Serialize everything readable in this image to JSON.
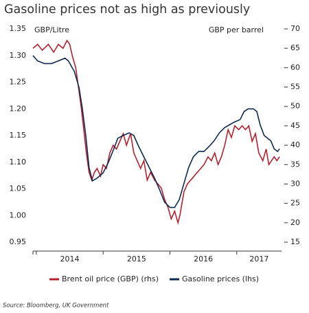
{
  "chart_data": {
    "type": "line",
    "title": "Gasoline prices not as high as previously",
    "ylabel": "GBP/Litre",
    "y2label": "GBP per barrel",
    "source": "Source: Bloomberg, UK Government",
    "xlim": [
      2013.95,
      2017.67
    ],
    "xticks": [
      2014,
      2015,
      2016,
      2017
    ],
    "ylim": [
      0.95,
      1.35
    ],
    "yticks": [
      {
        "value": 0.95,
        "label": "0.95"
      },
      {
        "value": 1.0,
        "label": "1.00"
      },
      {
        "value": 1.05,
        "label": "1.05"
      },
      {
        "value": 1.1,
        "label": "1.10"
      },
      {
        "value": 1.15,
        "label": "1.15"
      },
      {
        "value": 1.2,
        "label": "1.20"
      },
      {
        "value": 1.25,
        "label": "1.25"
      },
      {
        "value": 1.3,
        "label": "1.30"
      },
      {
        "value": 1.35,
        "label": "1.35"
      }
    ],
    "y2lim": [
      15,
      70
    ],
    "y2ticks": [
      15,
      20,
      25,
      30,
      35,
      40,
      45,
      50,
      55,
      60,
      65,
      70
    ],
    "legend": "bottom",
    "series": [
      {
        "name": "Brent oil price (GBP) (rhs)",
        "color": "#b5202e",
        "axis": "y2",
        "x": [
          2013.95,
          2014.02,
          2014.09,
          2014.18,
          2014.26,
          2014.33,
          2014.4,
          2014.46,
          2014.5,
          2014.54,
          2014.59,
          2014.63,
          2014.67,
          2014.71,
          2014.75,
          2014.79,
          2014.83,
          2014.87,
          2014.91,
          2014.96,
          2015.0,
          2015.05,
          2015.1,
          2015.15,
          2015.2,
          2015.25,
          2015.3,
          2015.35,
          2015.41,
          2015.46,
          2015.51,
          2015.56,
          2015.61,
          2015.66,
          2015.71,
          2015.77,
          2015.82,
          2015.87,
          2015.92,
          2015.97,
          2016.02,
          2016.07,
          2016.12,
          2016.15,
          2016.21,
          2016.26,
          2016.31,
          2016.36,
          2016.41,
          2016.46,
          2016.51,
          2016.57,
          2016.62,
          2016.67,
          2016.72,
          2016.77,
          2016.82,
          2016.87,
          2016.92,
          2016.97,
          2017.03,
          2017.08,
          2017.13,
          2017.18,
          2017.23,
          2017.28,
          2017.33,
          2017.39,
          2017.44,
          2017.48,
          2017.52,
          2017.56,
          2017.6,
          2017.64
        ],
        "values": [
          65,
          66,
          64.5,
          66,
          64,
          66,
          65,
          67,
          66,
          63,
          60,
          55,
          50,
          44,
          38,
          33,
          31,
          33,
          34,
          32,
          35,
          34,
          38,
          40,
          39,
          41,
          43,
          40,
          43,
          38,
          36,
          34,
          36,
          31,
          33,
          31,
          30,
          29,
          26,
          24,
          21,
          23,
          20,
          22,
          28,
          30,
          31,
          32,
          33,
          34,
          35,
          37,
          36,
          38,
          35,
          37,
          40,
          44,
          42,
          45,
          44,
          45,
          44,
          45,
          41,
          43,
          38,
          36,
          39,
          35,
          36,
          37,
          36,
          37
        ]
      },
      {
        "name": "Gasoline prices (lhs)",
        "color": "#0e2a4f",
        "axis": "y",
        "x": [
          2013.95,
          2014.02,
          2014.12,
          2014.23,
          2014.33,
          2014.43,
          2014.48,
          2014.57,
          2014.64,
          2014.69,
          2014.74,
          2014.79,
          2014.84,
          2014.91,
          2015.0,
          2015.08,
          2015.16,
          2015.22,
          2015.3,
          2015.39,
          2015.46,
          2015.53,
          2015.61,
          2015.69,
          2015.77,
          2015.84,
          2015.92,
          2016.0,
          2016.07,
          2016.14,
          2016.21,
          2016.28,
          2016.35,
          2016.43,
          2016.51,
          2016.59,
          2016.66,
          2016.74,
          2016.82,
          2016.89,
          2016.96,
          2017.05,
          2017.11,
          2017.17,
          2017.25,
          2017.3,
          2017.35,
          2017.41,
          2017.46,
          2017.51,
          2017.56,
          2017.61,
          2017.64
        ],
        "values": [
          1.3,
          1.29,
          1.285,
          1.285,
          1.29,
          1.295,
          1.29,
          1.27,
          1.24,
          1.2,
          1.15,
          1.09,
          1.065,
          1.07,
          1.08,
          1.1,
          1.125,
          1.145,
          1.15,
          1.155,
          1.15,
          1.13,
          1.11,
          1.09,
          1.07,
          1.05,
          1.025,
          1.015,
          1.015,
          1.03,
          1.06,
          1.09,
          1.11,
          1.12,
          1.12,
          1.13,
          1.14,
          1.155,
          1.165,
          1.17,
          1.175,
          1.18,
          1.195,
          1.2,
          1.2,
          1.195,
          1.17,
          1.15,
          1.145,
          1.14,
          1.125,
          1.12,
          1.125
        ]
      }
    ]
  }
}
